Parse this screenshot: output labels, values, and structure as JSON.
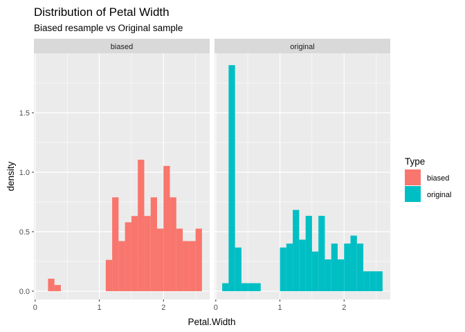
{
  "chart_data": {
    "type": "bar",
    "title": "Distribution of Petal Width",
    "subtitle": "Biased resample vs Original sample",
    "xlabel": "Petal.Width",
    "ylabel": "density",
    "xlim": [
      -0.02,
      2.72
    ],
    "ylim": [
      -0.07,
      2.0
    ],
    "x_ticks": [
      0,
      1,
      2
    ],
    "y_ticks": [
      0.0,
      0.5,
      1.0,
      1.5
    ],
    "y_tick_labels": [
      "0.0",
      "0.5",
      "1.0",
      "1.5"
    ],
    "x_tick_labels": [
      "0",
      "1",
      "2"
    ],
    "bin_width": 0.1,
    "grid": true,
    "legend": {
      "title": "Type",
      "position": "right",
      "entries": [
        {
          "label": "biased",
          "color": "#F8766D"
        },
        {
          "label": "original",
          "color": "#00BFC4"
        }
      ]
    },
    "panels": [
      {
        "strip": "biased",
        "color": "#F8766D",
        "bin_centers": [
          0.25,
          0.35,
          1.15,
          1.25,
          1.35,
          1.45,
          1.55,
          1.65,
          1.75,
          1.85,
          1.95,
          2.05,
          2.15,
          2.25,
          2.35,
          2.45,
          2.55
        ],
        "values": [
          0.105,
          0.052,
          0.263,
          0.789,
          0.421,
          0.579,
          0.632,
          1.105,
          0.632,
          0.789,
          0.526,
          1.053,
          0.789,
          0.526,
          0.421,
          0.421,
          0.526
        ]
      },
      {
        "strip": "original",
        "color": "#00BFC4",
        "bin_centers": [
          0.15,
          0.25,
          0.35,
          0.45,
          0.55,
          0.65,
          1.05,
          1.15,
          1.25,
          1.35,
          1.45,
          1.55,
          1.65,
          1.75,
          1.85,
          1.95,
          2.05,
          2.15,
          2.25,
          2.35,
          2.45,
          2.55
        ],
        "values": [
          0.067,
          1.9,
          0.367,
          0.067,
          0.067,
          0.067,
          0.367,
          0.4,
          0.683,
          0.433,
          0.633,
          0.333,
          0.633,
          0.267,
          0.4,
          0.267,
          0.4,
          0.467,
          0.4,
          0.167,
          0.167,
          0.167
        ]
      }
    ]
  }
}
